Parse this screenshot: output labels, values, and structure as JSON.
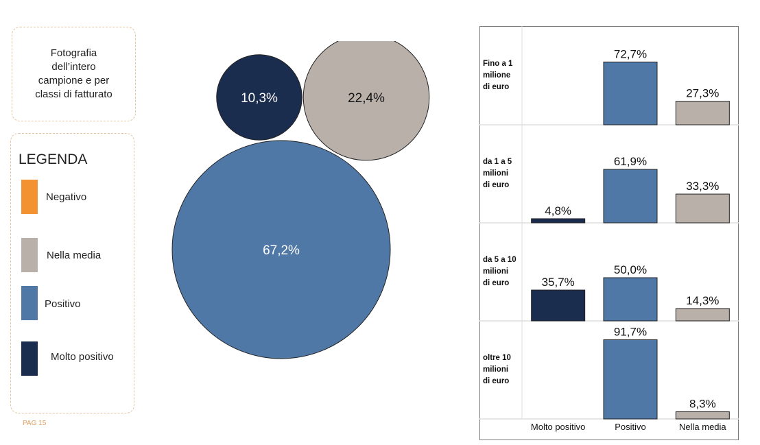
{
  "description": "Fotografia dell’intero campione e per classi di fatturato",
  "legend": {
    "title": "LEGENDA",
    "items": [
      {
        "label": "Negativo",
        "color": "#f39230"
      },
      {
        "label": "Nella media",
        "color": "#bab0aa"
      },
      {
        "label": "Positivo",
        "color": "#4f78a7"
      },
      {
        "label": "Molto positivo",
        "color": "#1b2d4f"
      }
    ]
  },
  "page_number": "PAG 15",
  "chart_data": [
    {
      "type": "bubble",
      "bubbles": [
        {
          "category": "Molto positivo",
          "value": 10.3,
          "label": "10,3%",
          "color": "#1b2d4f"
        },
        {
          "category": "Nella media",
          "value": 22.4,
          "label": "22,4%",
          "color": "#bab0aa"
        },
        {
          "category": "Positivo",
          "value": 67.2,
          "label": "67,2%",
          "color": "#4f78a7"
        }
      ]
    },
    {
      "type": "bar",
      "categories": [
        "Molto positivo",
        "Positivo",
        "Nella media"
      ],
      "colors": [
        "#1b2d4f",
        "#4f78a7",
        "#bab0aa"
      ],
      "ylim": [
        0,
        100
      ],
      "panels": [
        {
          "label": "Fino a 1 milione di euro",
          "values": [
            null,
            72.7,
            27.3
          ],
          "value_labels": [
            "",
            "72,7%",
            "27,3%"
          ]
        },
        {
          "label": "da 1 a 5 milioni di euro",
          "values": [
            4.8,
            61.9,
            33.3
          ],
          "value_labels": [
            "4,8%",
            "61,9%",
            "33,3%"
          ]
        },
        {
          "label": "da 5 a 10 milioni di euro",
          "values": [
            35.7,
            50.0,
            14.3
          ],
          "value_labels": [
            "35,7%",
            "50,0%",
            "14,3%"
          ]
        },
        {
          "label": "oltre 10 milioni di euro",
          "values": [
            null,
            91.7,
            8.3
          ],
          "value_labels": [
            "",
            "91,7%",
            "8,3%"
          ]
        }
      ]
    }
  ]
}
